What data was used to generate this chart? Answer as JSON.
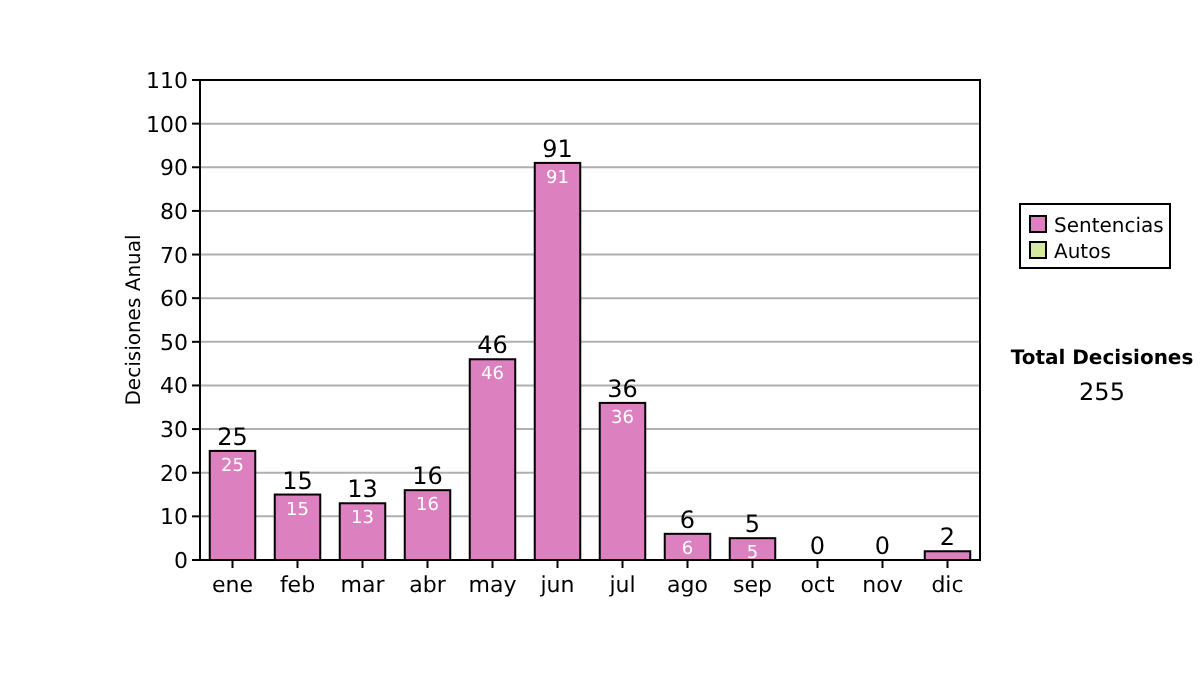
{
  "chart_data": {
    "type": "bar",
    "stacked": true,
    "ylabel": "Decisiones Anual",
    "categories": [
      "ene",
      "feb",
      "mar",
      "abr",
      "may",
      "jun",
      "jul",
      "ago",
      "sep",
      "oct",
      "nov",
      "dic"
    ],
    "series": [
      {
        "name": "Sentencias",
        "color": "#dd80c0",
        "values": [
          25,
          15,
          13,
          16,
          46,
          91,
          36,
          6,
          5,
          0,
          0,
          2
        ],
        "value_labels": [
          "25",
          "15",
          "13",
          "16",
          "46",
          "91",
          "36",
          "6",
          "5",
          null,
          null,
          null
        ]
      },
      {
        "name": "Autos",
        "color": "#d4e8a0",
        "values": [
          0,
          0,
          0,
          0,
          0,
          0,
          0,
          0,
          0,
          0,
          0,
          0
        ]
      }
    ],
    "totals": [
      "25",
      "15",
      "13",
      "16",
      "46",
      "91",
      "36",
      "6",
      "5",
      "0",
      "0",
      "2"
    ],
    "ylim": [
      0,
      110
    ],
    "yticks": [
      0,
      10,
      20,
      30,
      40,
      50,
      60,
      70,
      80,
      90,
      100,
      110
    ],
    "grid": "y",
    "legend": "right",
    "annotations": [
      "Total Decisiones",
      "255"
    ]
  }
}
